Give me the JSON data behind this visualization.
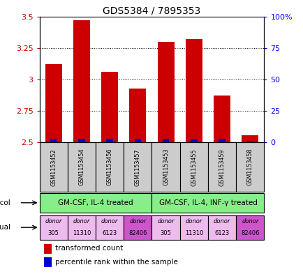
{
  "title": "GDS5384 / 7895353",
  "samples": [
    "GSM1153452",
    "GSM1153454",
    "GSM1153456",
    "GSM1153457",
    "GSM1153453",
    "GSM1153455",
    "GSM1153459",
    "GSM1153458"
  ],
  "red_values": [
    3.12,
    3.47,
    3.06,
    2.93,
    3.3,
    3.32,
    2.87,
    2.56
  ],
  "blue_pct": [
    3,
    3,
    3,
    3,
    3,
    3,
    3,
    1
  ],
  "ylim_left": [
    2.5,
    3.5
  ],
  "ylim_right": [
    0,
    100
  ],
  "yticks_left": [
    2.5,
    2.75,
    3.0,
    3.25,
    3.5
  ],
  "yticks_right": [
    0,
    25,
    50,
    75,
    100
  ],
  "ytick_labels_left": [
    "2.5",
    "2.75",
    "3",
    "3.25",
    "3.5"
  ],
  "ytick_labels_right": [
    "0",
    "25",
    "50",
    "75",
    "100%"
  ],
  "protocols": [
    "GM-CSF, IL-4 treated",
    "GM-CSF, IL-4, INF-γ treated"
  ],
  "individuals": [
    "donor\n305",
    "donor\n11310",
    "donor\n6123",
    "donor\n82406",
    "donor\n305",
    "donor\n11310",
    "donor\n6123",
    "donor\n82406"
  ],
  "ind_colors": [
    "#eebbee",
    "#eebbee",
    "#eebbee",
    "#cc55cc",
    "#eebbee",
    "#eebbee",
    "#eebbee",
    "#cc55cc"
  ],
  "bar_color": "#cc0000",
  "blue_color": "#0000cc",
  "protocol_color": "#88ee88",
  "sample_bg": "#cccccc",
  "left_tick_color": "#cc0000",
  "right_tick_color": "#0000ff",
  "legend_red": "transformed count",
  "legend_blue": "percentile rank within the sample"
}
